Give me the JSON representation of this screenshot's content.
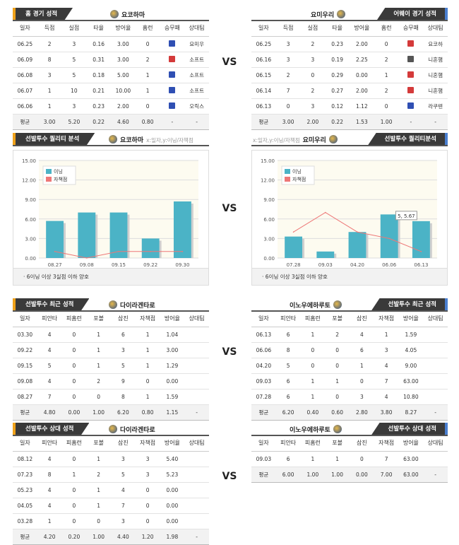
{
  "vs_label": "VS",
  "colors": {
    "bar": "#4bb3c6",
    "line": "#ee7777",
    "win": "#2f4fb3",
    "loss": "#d43a3a",
    "draw": "#555555"
  },
  "home_record": {
    "title": "홈 경기 성적",
    "team": "요코하마",
    "columns": [
      "일자",
      "득점",
      "실점",
      "타율",
      "방어율",
      "홈런",
      "승무패",
      "상대팀"
    ],
    "rows": [
      [
        "06.25",
        "2",
        "3",
        "0.16",
        "3.00",
        "0",
        "W",
        "요미우"
      ],
      [
        "06.09",
        "8",
        "5",
        "0.31",
        "3.00",
        "2",
        "L",
        "소프트"
      ],
      [
        "06.08",
        "3",
        "5",
        "0.18",
        "5.00",
        "1",
        "W",
        "소프트"
      ],
      [
        "06.07",
        "1",
        "10",
        "0.21",
        "10.00",
        "1",
        "W",
        "소프트"
      ],
      [
        "06.06",
        "1",
        "3",
        "0.23",
        "2.00",
        "0",
        "W",
        "오릭스"
      ]
    ],
    "avg": [
      "평균",
      "3.00",
      "5.20",
      "0.22",
      "4.60",
      "0.80",
      "-",
      "-"
    ]
  },
  "away_record": {
    "title": "어웨이 경기 성적",
    "team": "요미우리",
    "columns": [
      "일자",
      "득점",
      "실점",
      "타율",
      "방어율",
      "홈런",
      "승무패",
      "상대팀"
    ],
    "rows": [
      [
        "06.25",
        "3",
        "2",
        "0.23",
        "2.00",
        "0",
        "L",
        "요코하"
      ],
      [
        "06.16",
        "3",
        "3",
        "0.19",
        "2.25",
        "2",
        "D",
        "니혼햄"
      ],
      [
        "06.15",
        "2",
        "0",
        "0.29",
        "0.00",
        "1",
        "L",
        "니혼햄"
      ],
      [
        "06.14",
        "7",
        "2",
        "0.27",
        "2.00",
        "2",
        "L",
        "니혼햄"
      ],
      [
        "06.13",
        "0",
        "3",
        "0.12",
        "1.12",
        "0",
        "W",
        "라쿠텐"
      ]
    ],
    "avg": [
      "평균",
      "3.00",
      "2.00",
      "0.22",
      "1.53",
      "1.00",
      "-",
      "-"
    ]
  },
  "quality_left": {
    "title": "선발투수 퀄리티 분석",
    "team": "요코하마",
    "note": "x:일자,y:이닝/자책점",
    "footnote": "· 6이닝 이상 3실점 이하 양호",
    "legend": [
      "이닝",
      "자책점"
    ]
  },
  "quality_right": {
    "title": "선발투수 퀄리티분석",
    "team": "요미우리",
    "note": "x:일자,y:이닝/자책점",
    "footnote": "· 6이닝 이상 3실점 이하 양호",
    "legend": [
      "이닝",
      "자책점"
    ],
    "callout": "5, 5.67"
  },
  "chart_data": [
    {
      "type": "bar",
      "categories": [
        "08.27",
        "09.08",
        "09.15",
        "09.22",
        "09.30"
      ],
      "series": [
        {
          "name": "이닝",
          "type": "bar",
          "values": [
            5.7,
            7.0,
            7.0,
            3.0,
            8.7
          ]
        },
        {
          "name": "자책점",
          "type": "line",
          "values": [
            1,
            0,
            1,
            1,
            1
          ]
        }
      ],
      "ylim": [
        0,
        15
      ],
      "yticks": [
        "0.00",
        "3.00",
        "6.00",
        "9.00",
        "12.00",
        "15.00"
      ],
      "legend_position": "top-left",
      "grid": true
    },
    {
      "type": "bar",
      "categories": [
        "07.28",
        "09.03",
        "04.20",
        "06.06",
        "06.13"
      ],
      "series": [
        {
          "name": "이닝",
          "type": "bar",
          "values": [
            3.3,
            1.0,
            4.0,
            6.7,
            5.67
          ]
        },
        {
          "name": "자책점",
          "type": "line",
          "values": [
            4,
            7,
            4,
            3,
            1
          ]
        }
      ],
      "ylim": [
        0,
        15
      ],
      "yticks": [
        "0.00",
        "3.00",
        "6.00",
        "9.00",
        "12.00",
        "15.00"
      ],
      "legend_position": "top-left",
      "grid": true
    }
  ],
  "recent_left": {
    "title": "선발투수 최근 성적",
    "team": "다이라겐타로",
    "columns": [
      "일자",
      "피안타",
      "피홈런",
      "포볼",
      "삼진",
      "자책점",
      "방어율",
      "상대팀"
    ],
    "rows": [
      [
        "03.30",
        "4",
        "0",
        "1",
        "6",
        "1",
        "1.04",
        ""
      ],
      [
        "09.22",
        "4",
        "0",
        "1",
        "3",
        "1",
        "3.00",
        ""
      ],
      [
        "09.15",
        "5",
        "0",
        "1",
        "5",
        "1",
        "1.29",
        ""
      ],
      [
        "09.08",
        "4",
        "0",
        "2",
        "9",
        "0",
        "0.00",
        ""
      ],
      [
        "08.27",
        "7",
        "0",
        "0",
        "8",
        "1",
        "1.59",
        ""
      ]
    ],
    "avg": [
      "평균",
      "4.80",
      "0.00",
      "1.00",
      "6.20",
      "0.80",
      "1.15",
      "-"
    ]
  },
  "recent_right": {
    "title": "선발투수 최근 성적",
    "team": "이노우에하루토",
    "columns": [
      "일자",
      "피안타",
      "피홈런",
      "포볼",
      "삼진",
      "자책점",
      "방어율",
      "상대팀"
    ],
    "rows": [
      [
        "06.13",
        "6",
        "1",
        "2",
        "4",
        "1",
        "1.59",
        ""
      ],
      [
        "06.06",
        "8",
        "0",
        "0",
        "6",
        "3",
        "4.05",
        ""
      ],
      [
        "04.20",
        "5",
        "0",
        "0",
        "1",
        "4",
        "9.00",
        ""
      ],
      [
        "09.03",
        "6",
        "1",
        "1",
        "0",
        "7",
        "63.00",
        ""
      ],
      [
        "07.28",
        "6",
        "1",
        "0",
        "3",
        "4",
        "10.80",
        ""
      ]
    ],
    "avg": [
      "평균",
      "6.20",
      "0.40",
      "0.60",
      "2.80",
      "3.80",
      "8.27",
      "-"
    ]
  },
  "vsteam_left": {
    "title": "선발투수 상대 성적",
    "team": "다이라겐타로",
    "columns": [
      "일자",
      "피안타",
      "피홈런",
      "포볼",
      "삼진",
      "자책점",
      "방어율",
      "상대팀"
    ],
    "rows": [
      [
        "08.12",
        "4",
        "0",
        "1",
        "3",
        "3",
        "5.40",
        ""
      ],
      [
        "07.23",
        "8",
        "1",
        "2",
        "5",
        "3",
        "5.23",
        ""
      ],
      [
        "05.23",
        "4",
        "0",
        "1",
        "4",
        "0",
        "0.00",
        ""
      ],
      [
        "04.05",
        "4",
        "0",
        "1",
        "7",
        "0",
        "0.00",
        ""
      ],
      [
        "03.28",
        "1",
        "0",
        "0",
        "3",
        "0",
        "0.00",
        ""
      ]
    ],
    "avg": [
      "평균",
      "4.20",
      "0.20",
      "1.00",
      "4.40",
      "1.20",
      "1.98",
      "-"
    ]
  },
  "vsteam_right": {
    "title": "선발투수 상대 성적",
    "team": "이노우에하루토",
    "columns": [
      "일자",
      "피안타",
      "피홈런",
      "포볼",
      "삼진",
      "자책점",
      "방어율",
      "상대팀"
    ],
    "rows": [
      [
        "09.03",
        "6",
        "1",
        "1",
        "0",
        "7",
        "63.00",
        ""
      ]
    ],
    "avg": [
      "평균",
      "6.00",
      "1.00",
      "1.00",
      "0.00",
      "7.00",
      "63.00",
      "-"
    ]
  }
}
